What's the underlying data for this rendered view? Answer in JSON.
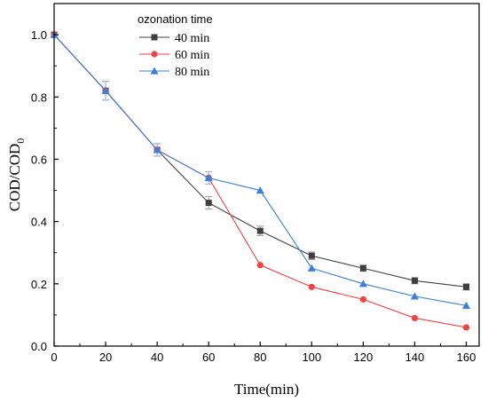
{
  "chart_data": {
    "type": "line",
    "title": "",
    "xlabel": "Time(min)",
    "ylabel": "COD/COD",
    "ylabel_subscript": "0",
    "xlim": [
      0,
      165
    ],
    "ylim": [
      0,
      1.1
    ],
    "xticks": [
      0,
      20,
      40,
      60,
      80,
      100,
      120,
      140,
      160
    ],
    "yticks": [
      0.0,
      0.2,
      0.4,
      0.6,
      0.8,
      1.0
    ],
    "xtick_labels": [
      "0",
      "20",
      "40",
      "60",
      "80",
      "100",
      "120",
      "140",
      "160"
    ],
    "ytick_labels": [
      "0.0",
      "0.2",
      "0.4",
      "0.6",
      "0.8",
      "1.0"
    ],
    "grid": false,
    "legend": {
      "title": "ozonation time",
      "placement": "top-left"
    },
    "series": [
      {
        "name": "40 min",
        "color": "#3f3f3f",
        "marker": "square",
        "x": [
          0,
          20,
          40,
          60,
          80,
          100,
          120,
          140,
          160
        ],
        "y": [
          1.0,
          0.82,
          0.63,
          0.46,
          0.37,
          0.29,
          0.25,
          0.21,
          0.19
        ],
        "error": [
          0.0,
          0.03,
          0.02,
          0.02,
          0.015,
          0.012,
          0.01,
          0.01,
          0.01
        ]
      },
      {
        "name": "60 min",
        "color": "#ee4444",
        "marker": "circle",
        "x": [
          0,
          20,
          40,
          60,
          80,
          100,
          120,
          140,
          160
        ],
        "y": [
          1.0,
          0.82,
          0.63,
          0.54,
          0.26,
          0.19,
          0.15,
          0.09,
          0.06
        ],
        "error": [
          0.0,
          0.0,
          0.0,
          0.0,
          0.0,
          0.0,
          0.0,
          0.0,
          0.0
        ]
      },
      {
        "name": "80 min",
        "color": "#3a7fd9",
        "marker": "triangle",
        "x": [
          0,
          20,
          40,
          60,
          80,
          100,
          120,
          140,
          160
        ],
        "y": [
          1.0,
          0.82,
          0.63,
          0.54,
          0.5,
          0.25,
          0.2,
          0.16,
          0.13
        ],
        "error": [
          0.0,
          0.03,
          0.02,
          0.02,
          0.0,
          0.0,
          0.0,
          0.0,
          0.0
        ]
      }
    ]
  }
}
